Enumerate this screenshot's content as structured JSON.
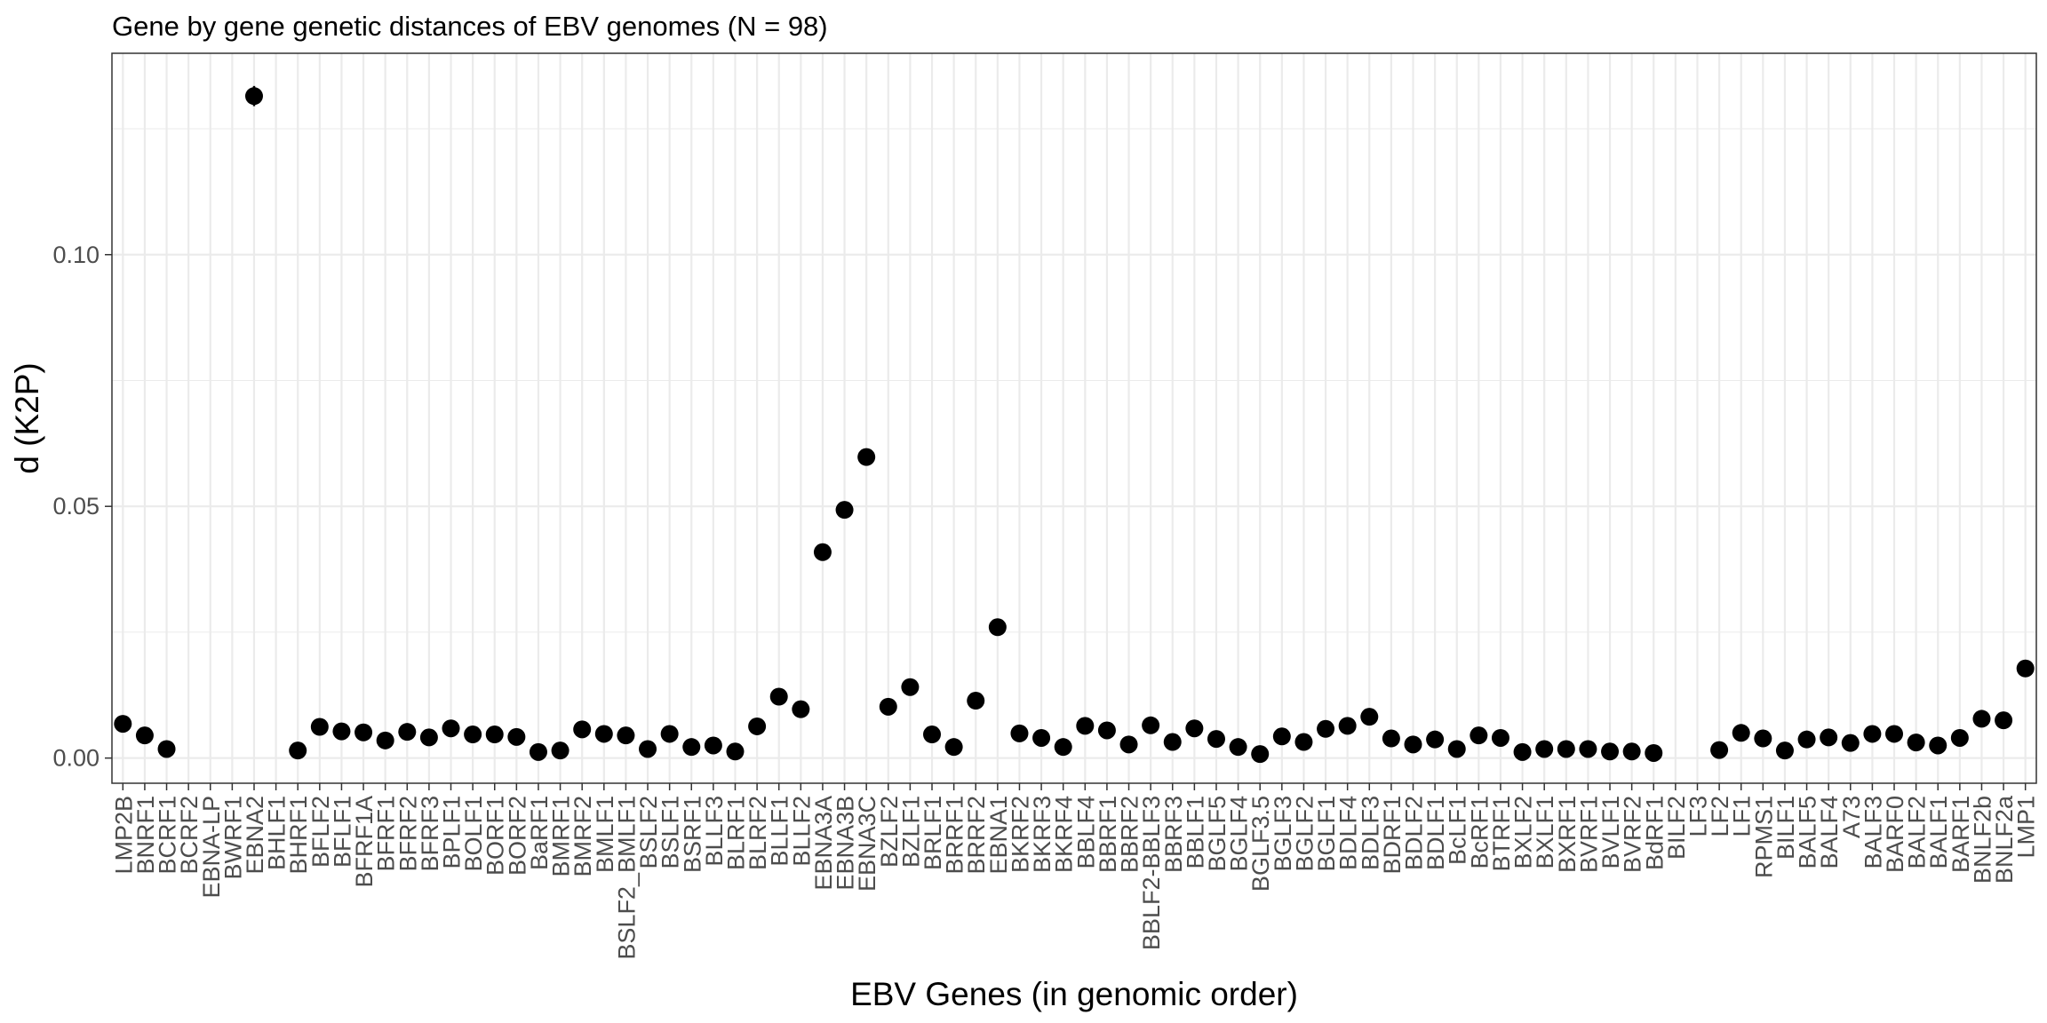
{
  "chart_data": {
    "type": "scatter",
    "title": "Gene by gene genetic distances of EBV genomes (N = 98)",
    "xlabel": "EBV Genes (in genomic order)",
    "ylabel": "d (K2P)",
    "ylim": [
      -0.005,
      0.14
    ],
    "yticks": [
      0.0,
      0.05,
      0.1
    ],
    "ytick_labels": [
      "0.00",
      "0.05",
      "0.10"
    ],
    "grid": true,
    "theme": "bw",
    "point_color": "#000000",
    "categories": [
      "LMP2B",
      "BNRF1",
      "BCRF1",
      "BCRF2",
      "EBNA-LP",
      "BWRF1",
      "EBNA2",
      "BHLF1",
      "BHRF1",
      "BFLF2",
      "BFLF1",
      "BFRF1A",
      "BFRF1",
      "BFRF2",
      "BFRF3",
      "BPLF1",
      "BOLF1",
      "BORF1",
      "BORF2",
      "BaRF1",
      "BMRF1",
      "BMRF2",
      "BMLF1",
      "BSLF2_BMLF1",
      "BSLF2",
      "BSLF1",
      "BSRF1",
      "BLLF3",
      "BLRF1",
      "BLRF2",
      "BLLF1",
      "BLLF2",
      "EBNA3A",
      "EBNA3B",
      "EBNA3C",
      "BZLF2",
      "BZLF1",
      "BRLF1",
      "BRRF1",
      "BRRF2",
      "EBNA1",
      "BKRF2",
      "BKRF3",
      "BKRF4",
      "BBLF4",
      "BBRF1",
      "BBRF2",
      "BBLF2-BBLF3",
      "BBRF3",
      "BBLF1",
      "BGLF5",
      "BGLF4",
      "BGLF3.5",
      "BGLF3",
      "BGLF2",
      "BGLF1",
      "BDLF4",
      "BDLF3",
      "BDRF1",
      "BDLF2",
      "BDLF1",
      "BcLF1",
      "BcRF1",
      "BTRF1",
      "BXLF2",
      "BXLF1",
      "BXRF1",
      "BVRF1",
      "BVLF1",
      "BVRF2",
      "BdRF1",
      "BILF2",
      "LF3",
      "LF2",
      "LF1",
      "RPMS1",
      "BILF1",
      "BALF5",
      "BALF4",
      "A73",
      "BALF3",
      "BARF0",
      "BALF2",
      "BALF1",
      "BARF1",
      "BNLF2b",
      "BNLF2a",
      "LMP1"
    ],
    "values": [
      0.0068,
      0.0045,
      0.0018,
      null,
      null,
      null,
      0.1315,
      null,
      0.0015,
      0.0062,
      0.0053,
      0.0051,
      0.0035,
      0.0052,
      0.0041,
      0.0059,
      0.0047,
      0.0047,
      0.0042,
      0.0012,
      0.0015,
      0.0057,
      0.0048,
      0.0045,
      0.0018,
      0.0048,
      0.0022,
      0.0025,
      0.0013,
      0.0063,
      0.0122,
      0.0097,
      0.0409,
      0.0493,
      0.0598,
      0.0102,
      0.0141,
      0.0047,
      0.0022,
      0.0114,
      0.026,
      0.0049,
      0.004,
      0.0022,
      0.0064,
      0.0055,
      0.0027,
      0.0065,
      0.0032,
      0.0059,
      0.0038,
      0.0022,
      0.0008,
      0.0043,
      0.0032,
      0.0058,
      0.0064,
      0.0082,
      0.0039,
      0.0027,
      0.0037,
      0.0018,
      0.0045,
      0.004,
      0.0012,
      0.0018,
      0.0018,
      0.0018,
      0.0013,
      0.0013,
      0.001,
      null,
      null,
      0.0016,
      0.005,
      0.0039,
      0.0015,
      0.0037,
      0.0041,
      0.003,
      0.0048,
      0.0048,
      0.0031,
      0.0025,
      0.004,
      0.0078,
      0.0075,
      0.0178
    ],
    "error_bars": [
      {
        "category": "EBNA2",
        "low": 0.1295,
        "high": 0.1335
      }
    ]
  }
}
